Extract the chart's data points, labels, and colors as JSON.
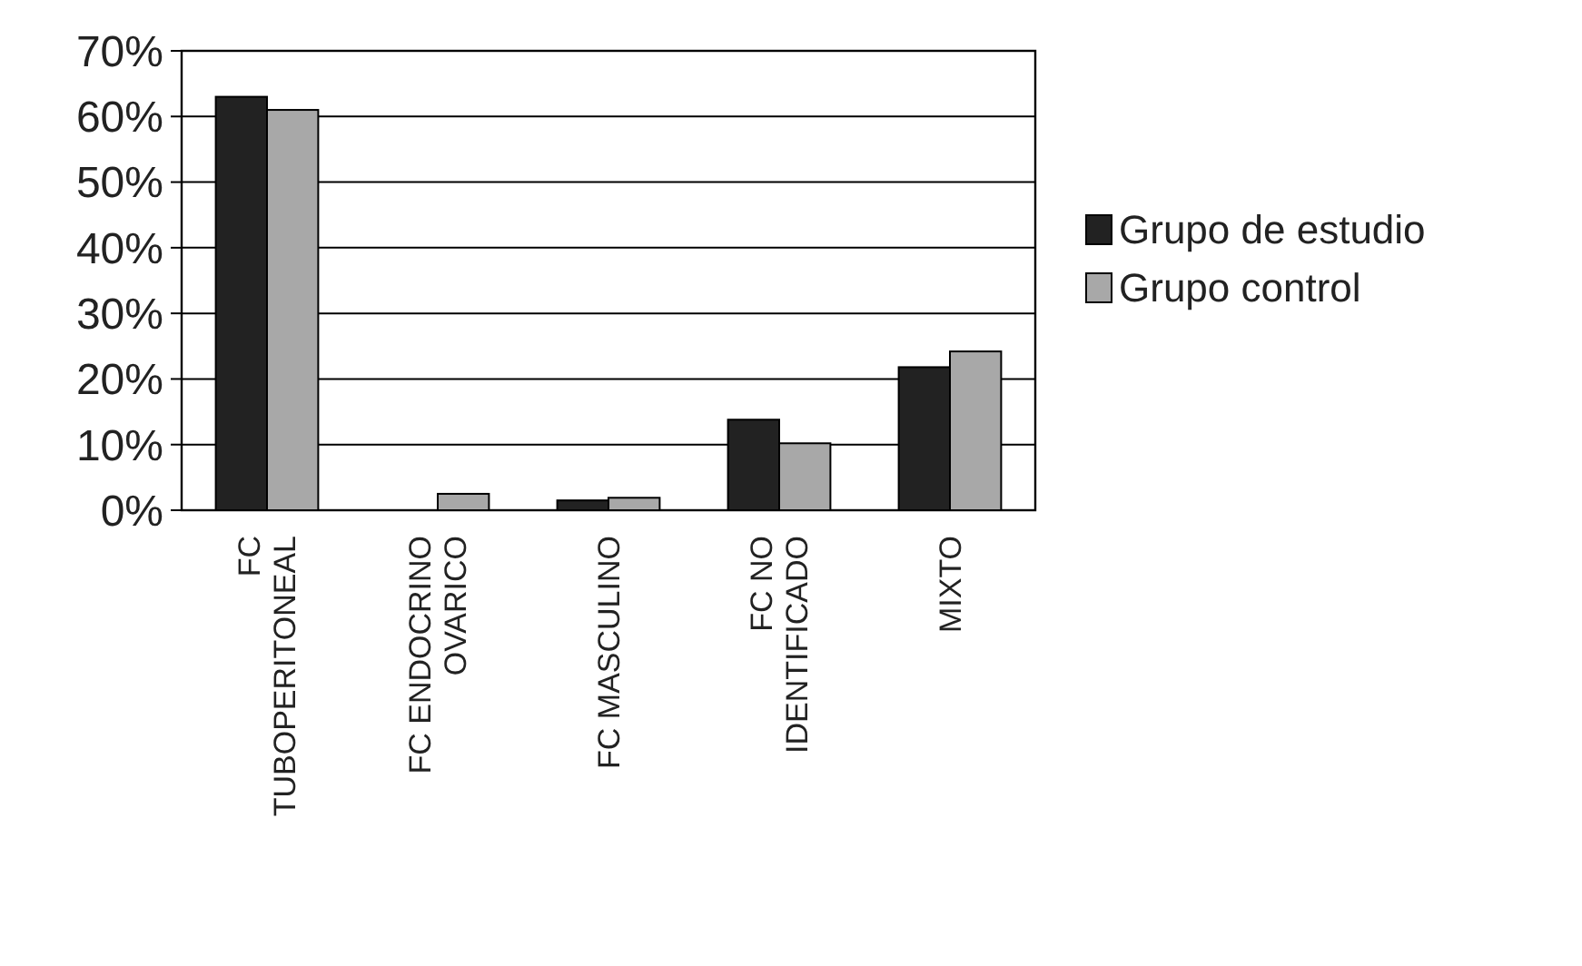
{
  "chart_data": {
    "type": "bar",
    "categories": [
      "FC TUBOPERITONEAL",
      "FC ENDOCRINO OVARICO",
      "FC MASCULINO",
      "FC NO IDENTIFICADO",
      "MIXTO"
    ],
    "series": [
      {
        "name": "Grupo de estudio",
        "color": "#222222",
        "values": [
          63,
          0,
          1.5,
          13.8,
          21.8
        ]
      },
      {
        "name": "Grupo control",
        "color": "#a8a8a8",
        "values": [
          61,
          2.5,
          1.9,
          10.2,
          24.2
        ]
      }
    ],
    "ylim": [
      0,
      70
    ],
    "yticks": [
      {
        "value": 0,
        "label": "0%"
      },
      {
        "value": 10,
        "label": "10%"
      },
      {
        "value": 20,
        "label": "20%"
      },
      {
        "value": 30,
        "label": "30%"
      },
      {
        "value": 40,
        "label": "40%"
      },
      {
        "value": 50,
        "label": "50%"
      },
      {
        "value": 60,
        "label": "60%"
      },
      {
        "value": 70,
        "label": "70%"
      }
    ],
    "grid": "y",
    "legend": "right"
  }
}
